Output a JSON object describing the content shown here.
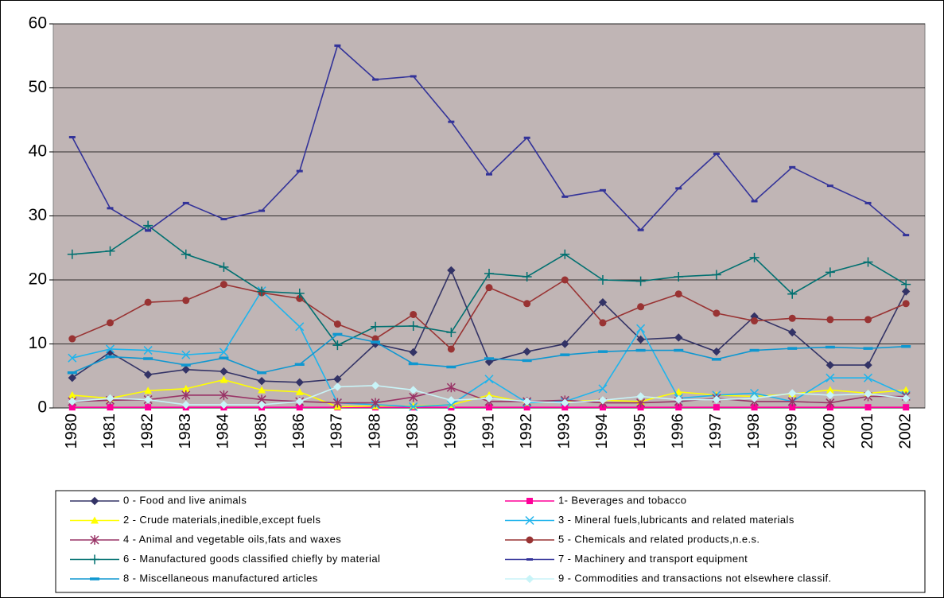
{
  "chart_data": {
    "type": "line",
    "categories": [
      "1980",
      "1981",
      "1982",
      "1983",
      "1984",
      "1985",
      "1986",
      "1987",
      "1988",
      "1989",
      "1990",
      "1991",
      "1992",
      "1993",
      "1994",
      "1995",
      "1996",
      "1997",
      "1998",
      "1999",
      "2000",
      "2001",
      "2002"
    ],
    "ylim": [
      0,
      60
    ],
    "yticks": [
      0,
      10,
      20,
      30,
      40,
      50,
      60
    ],
    "grid": true,
    "series": [
      {
        "name": "0 - Food and live animals",
        "color": "#333366",
        "marker": "diamond",
        "values": [
          4.7,
          8.7,
          5.2,
          6.0,
          5.7,
          4.2,
          4.0,
          4.5,
          10.0,
          8.7,
          21.5,
          7.2,
          8.8,
          10.0,
          16.5,
          10.7,
          11.0,
          8.8,
          14.3,
          11.8,
          6.7,
          6.7,
          18.2
        ]
      },
      {
        "name": "1- Beverages and tobacco",
        "color": "#ff0099",
        "marker": "square",
        "values": [
          0.1,
          0.1,
          0.1,
          0.1,
          0.1,
          0.1,
          0.1,
          0.1,
          0.1,
          0.1,
          0.1,
          0.1,
          0.1,
          0.1,
          0.1,
          0.1,
          0.1,
          0.1,
          0.1,
          0.1,
          0.1,
          0.1,
          0.1
        ]
      },
      {
        "name": "2 - Crude materials,inedible,except fuels",
        "color": "#ffff00",
        "marker": "triangle",
        "values": [
          2.0,
          1.5,
          2.7,
          3.0,
          4.4,
          2.8,
          2.5,
          0.2,
          0.3,
          0.3,
          0.5,
          2.0,
          0.8,
          1.0,
          1.2,
          1.0,
          2.5,
          2.0,
          1.8,
          2.2,
          2.8,
          2.3,
          2.8
        ]
      },
      {
        "name": "3 - Mineral fuels,lubricants and related materials",
        "color": "#1fb4ec",
        "marker": "x",
        "values": [
          7.8,
          9.2,
          9.0,
          8.3,
          8.7,
          18.3,
          12.7,
          0.8,
          0.5,
          0.2,
          0.5,
          4.5,
          0.8,
          1.0,
          3.0,
          12.4,
          1.5,
          2.0,
          2.3,
          1.0,
          4.7,
          4.7,
          2.0
        ]
      },
      {
        "name": "4 - Animal and vegetable oils,fats and waxes",
        "color": "#993366",
        "marker": "star",
        "values": [
          1.0,
          1.2,
          1.3,
          2.0,
          2.0,
          1.3,
          1.0,
          0.8,
          0.8,
          1.7,
          3.2,
          1.0,
          1.0,
          1.2,
          0.8,
          0.8,
          1.0,
          1.5,
          1.0,
          1.0,
          0.8,
          1.8,
          1.8
        ]
      },
      {
        "name": "5 - Chemicals and related products,n.e.s.",
        "color": "#993333",
        "marker": "circle",
        "values": [
          10.8,
          13.3,
          16.5,
          16.8,
          19.3,
          18.0,
          17.1,
          13.1,
          10.8,
          14.6,
          9.2,
          18.8,
          16.3,
          20.0,
          13.3,
          15.8,
          17.8,
          14.8,
          13.6,
          14.0,
          13.8,
          13.8,
          16.3
        ]
      },
      {
        "name": "6 - Manufactured goods classified chiefly by material",
        "color": "#007070",
        "marker": "plus",
        "values": [
          24.0,
          24.5,
          28.5,
          24.0,
          22.0,
          18.2,
          17.9,
          9.8,
          12.7,
          12.8,
          11.8,
          21.0,
          20.5,
          24.0,
          20.0,
          19.8,
          20.5,
          20.8,
          23.5,
          17.8,
          21.2,
          22.8,
          19.3
        ]
      },
      {
        "name": "7 - Machinery and transport equipment",
        "color": "#333399",
        "marker": "dash",
        "values": [
          42.3,
          31.2,
          27.7,
          32.0,
          29.5,
          30.8,
          37.0,
          56.6,
          51.3,
          51.8,
          44.7,
          36.5,
          42.2,
          33.0,
          34.0,
          27.8,
          34.3,
          39.7,
          32.3,
          37.6,
          34.7,
          32.0,
          27.0
        ]
      },
      {
        "name": "8 - Miscellaneous manufactured articles",
        "color": "#0f97d0",
        "marker": "bar",
        "values": [
          5.5,
          8.0,
          7.7,
          6.7,
          7.8,
          5.5,
          6.8,
          11.5,
          10.3,
          6.9,
          6.4,
          7.7,
          7.4,
          8.3,
          8.8,
          9.0,
          9.0,
          7.6,
          9.0,
          9.3,
          9.5,
          9.3,
          9.6
        ]
      },
      {
        "name": "9 - Commodities and transactions not elsewhere classif.",
        "color": "#c8f4f8",
        "marker": "diamond",
        "values": [
          1.0,
          1.5,
          1.3,
          0.5,
          0.5,
          0.5,
          1.0,
          3.3,
          3.5,
          2.8,
          1.2,
          1.5,
          1.0,
          0.8,
          1.2,
          1.8,
          1.3,
          1.3,
          1.5,
          2.3,
          2.0,
          2.2,
          1.5
        ]
      }
    ]
  }
}
